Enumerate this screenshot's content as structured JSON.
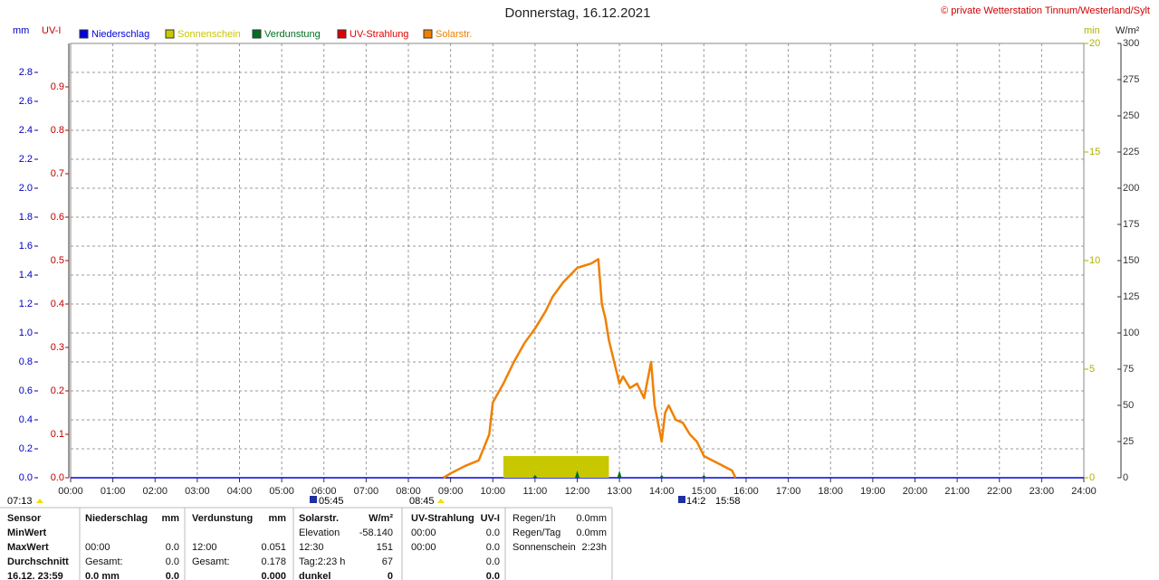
{
  "chart_data": {
    "type": "line",
    "title": "Donnerstag, 16.12.2021",
    "source": "© private Wetterstation Tinnum/Westerland/Sylt",
    "legend": "top",
    "grid": true,
    "xlim": [
      0,
      24
    ],
    "xticks": [
      {
        "value": 0,
        "label": "00:00"
      },
      {
        "value": 1,
        "label": "01:00"
      },
      {
        "value": 2,
        "label": "02:00"
      },
      {
        "value": 3,
        "label": "03:00"
      },
      {
        "value": 4,
        "label": "04:00"
      },
      {
        "value": 5,
        "label": "05:00"
      },
      {
        "value": 6,
        "label": "06:00"
      },
      {
        "value": 7,
        "label": "07:00"
      },
      {
        "value": 8,
        "label": "08:00"
      },
      {
        "value": 9,
        "label": "09:00"
      },
      {
        "value": 10,
        "label": "10:00"
      },
      {
        "value": 11,
        "label": "11:00"
      },
      {
        "value": 12,
        "label": "12:00"
      },
      {
        "value": 13,
        "label": "13:00"
      },
      {
        "value": 14,
        "label": "14:00"
      },
      {
        "value": 15,
        "label": "15:00"
      },
      {
        "value": 16,
        "label": "16:00"
      },
      {
        "value": 17,
        "label": "17:00"
      },
      {
        "value": 18,
        "label": "18:00"
      },
      {
        "value": 19,
        "label": "19:00"
      },
      {
        "value": 20,
        "label": "20:00"
      },
      {
        "value": 21,
        "label": "21:00"
      },
      {
        "value": 22,
        "label": "22:00"
      },
      {
        "value": 23,
        "label": "23:00"
      },
      {
        "value": 24,
        "label": "24:00"
      }
    ],
    "ylabel": "mm",
    "ylim": [
      0,
      3.0
    ],
    "yticks": [
      {
        "value": 0,
        "label": "0.0"
      },
      0.2,
      0.4,
      0.6,
      0.8,
      {
        "value": 1,
        "label": "1.0"
      },
      1.2,
      1.4,
      1.6,
      1.8,
      {
        "value": 2,
        "label": "2.0"
      },
      2.2,
      2.4,
      2.6,
      2.8
    ],
    "y2label": "UV-I",
    "y2lim": [
      0,
      1.0
    ],
    "y2ticks": [
      {
        "value": 0,
        "label": "0.0"
      },
      0.1,
      0.2,
      0.3,
      0.4,
      0.5,
      0.6,
      0.7,
      0.8,
      0.9
    ],
    "y3label": "min",
    "y3lim": [
      0,
      20
    ],
    "y3ticks": [
      0,
      5,
      10,
      15,
      20
    ],
    "y4label": "W/m²",
    "y4lim": [
      0,
      300
    ],
    "y4ticks": [
      0,
      25,
      50,
      75,
      100,
      125,
      150,
      175,
      200,
      225,
      250,
      275,
      300
    ],
    "series": [
      {
        "name": "Niederschlag",
        "color": "#0000e0",
        "axis": "y",
        "kind": "line",
        "x": [
          "00:00",
          "24:00"
        ],
        "values": [
          0,
          0
        ]
      },
      {
        "name": "Sonnenschein",
        "color": "#c8c800",
        "axis": "y3",
        "kind": "range",
        "x": [
          "10:15"
        ],
        "x_end": [
          "12:45"
        ],
        "values": [
          1
        ]
      },
      {
        "name": "Verdunstung",
        "color": "#007020",
        "axis": "y",
        "kind": "spike",
        "x": [
          "11:00",
          "12:00",
          "13:00",
          "14:00",
          "15:00"
        ],
        "values": [
          0.02,
          0.05,
          0.051,
          0.02,
          0.02
        ]
      },
      {
        "name": "UV-Strahlung",
        "color": "#e00000",
        "axis": "y2",
        "kind": "line",
        "x": [],
        "values": []
      },
      {
        "name": "Solarstr.",
        "color": "#f08000",
        "axis": "y4",
        "kind": "line",
        "x": [
          "08:50",
          "09:00",
          "09:20",
          "09:40",
          "09:55",
          "10:00",
          "10:15",
          "10:30",
          "10:45",
          "11:00",
          "11:15",
          "11:25",
          "11:40",
          "12:00",
          "12:20",
          "12:30",
          "12:35",
          "12:40",
          "12:45",
          "12:55",
          "13:00",
          "13:05",
          "13:15",
          "13:25",
          "13:35",
          "13:45",
          "13:50",
          "14:00",
          "14:05",
          "14:10",
          "14:20",
          "14:30",
          "14:40",
          "14:50",
          "15:00",
          "15:20",
          "15:40",
          "15:45"
        ],
        "values": [
          0,
          3,
          8,
          12,
          30,
          52,
          65,
          80,
          93,
          103,
          115,
          125,
          135,
          145,
          148,
          151,
          120,
          110,
          95,
          75,
          65,
          70,
          62,
          65,
          55,
          80,
          50,
          25,
          45,
          50,
          40,
          38,
          30,
          25,
          15,
          10,
          5,
          0
        ]
      }
    ],
    "annotations": [
      "07:13",
      "05:45",
      "08:45",
      "14:2",
      "15:58"
    ]
  },
  "stats": {
    "rows": [
      [
        "Sensor",
        "Niederschlag",
        "mm",
        "Verdunstung",
        "mm",
        "Solarstr.",
        "W/m²",
        "UV-Strahlung",
        "UV-I"
      ],
      [
        "MinWert",
        null,
        null,
        null,
        null,
        "Elevation",
        "-58.140",
        "00:00",
        "0.0"
      ],
      [
        "MaxWert",
        "00:00",
        "0.0",
        "12:00",
        "0.051",
        "12:30",
        "151",
        "00:00",
        "0.0"
      ],
      [
        "Durchschnitt",
        "Gesamt:",
        "0.0",
        "Gesamt:",
        "0.178",
        "Tag:2:23 h",
        "67",
        null,
        "0.0"
      ],
      [
        "16.12. 23:59",
        "0.0 mm",
        "0.0",
        null,
        "0.000",
        "dunkel",
        "0",
        null,
        "0.0"
      ]
    ],
    "side": [
      [
        "Regen/1h",
        "0.0mm"
      ],
      [
        "Regen/Tag",
        "0.0mm"
      ],
      [
        "Sonnenschein",
        "2:23h"
      ]
    ]
  }
}
